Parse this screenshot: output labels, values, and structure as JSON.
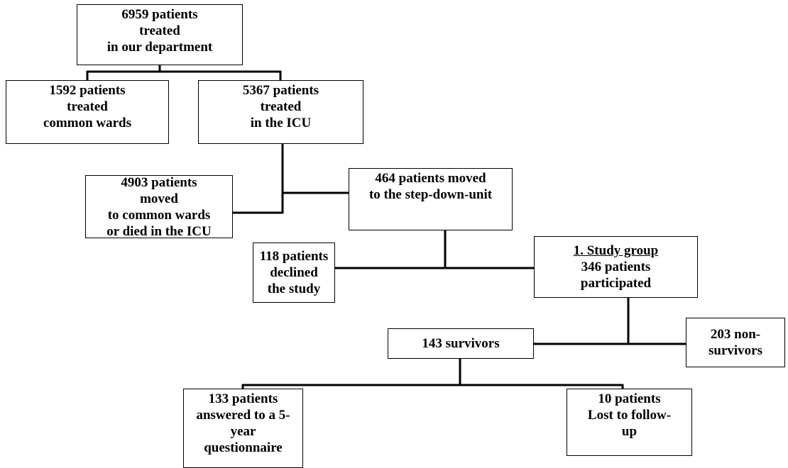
{
  "nodes": [
    {
      "lines": [
        "6959 patients",
        "treated",
        "in our department"
      ]
    },
    {
      "lines": [
        "1592 patients",
        "treated",
        "common wards"
      ]
    },
    {
      "lines": [
        "5367 patients",
        "treated",
        "in the ICU"
      ]
    },
    {
      "lines": [
        "4903 patients",
        "moved",
        "to common wards",
        "or died in the ICU"
      ]
    },
    {
      "lines": [
        "464 patients moved",
        "to the step-down-unit"
      ]
    },
    {
      "lines": [
        "118 patients",
        "declined",
        "the study"
      ]
    },
    {
      "lines": [
        "1. Study group",
        "346 patients",
        "participated"
      ]
    },
    {
      "lines": [
        "143 survivors"
      ]
    },
    {
      "lines": [
        "203 non-",
        "survivors"
      ]
    },
    {
      "lines": [
        "133 patients",
        "answered to a 5-",
        "year",
        "questionnaire"
      ]
    },
    {
      "lines": [
        "10 patients",
        "Lost to follow-",
        "up"
      ]
    }
  ]
}
